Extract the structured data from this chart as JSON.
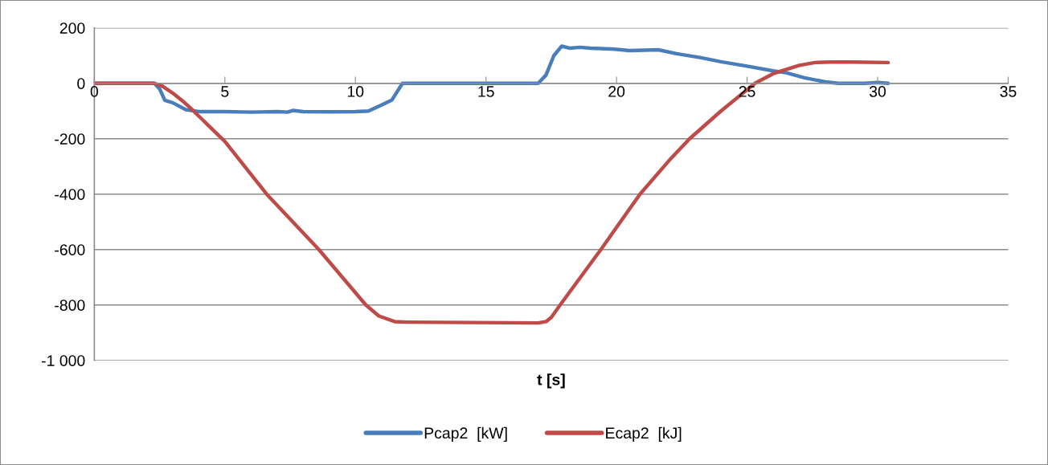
{
  "chart_data": {
    "type": "line",
    "xlabel": "t [s]",
    "xlim": [
      0,
      35
    ],
    "xticks": [
      0,
      5,
      10,
      15,
      20,
      25,
      30,
      35
    ],
    "ylim": [
      -1000,
      200
    ],
    "yticks": [
      {
        "value": -1000,
        "label": "-1 000"
      },
      -800,
      -600,
      -400,
      -200,
      0,
      200
    ],
    "grid": "y",
    "legend": "bottom",
    "marker": "none",
    "line_style": "solid",
    "series": [
      {
        "name": "Pcap2  [kW]",
        "color": "#4a7ebb",
        "x": [
          0,
          2.3,
          2.5,
          2.7,
          3.0,
          3.5,
          4.0,
          5.0,
          6.0,
          7.0,
          7.4,
          7.6,
          8.0,
          9.0,
          10.0,
          10.5,
          11.0,
          11.4,
          11.6,
          11.8,
          13.0,
          15.0,
          17.0,
          17.3,
          17.6,
          17.9,
          18.2,
          18.6,
          19.0,
          19.8,
          20.5,
          21.6,
          22.3,
          23.2,
          24.0,
          25.0,
          26.0,
          26.5,
          27.2,
          28.0,
          28.5,
          29.5,
          30.0,
          30.4
        ],
        "values": [
          0,
          0,
          -20,
          -61,
          -70,
          -95,
          -102,
          -102,
          -104,
          -102,
          -104,
          -98,
          -102,
          -103,
          -102,
          -100,
          -78,
          -60,
          -30,
          0,
          0,
          0,
          0,
          30,
          100,
          134,
          127,
          130,
          127,
          124,
          118,
          121,
          107,
          93,
          78,
          62,
          45,
          38,
          20,
          5,
          0,
          0,
          3,
          0
        ]
      },
      {
        "name": "Ecap2  [kJ]",
        "color": "#be4b48",
        "x": [
          0,
          2.3,
          2.6,
          3.0,
          3.4,
          3.8,
          5.0,
          6.6,
          8.6,
          10.4,
          10.9,
          11.5,
          12.0,
          17.0,
          17.3,
          17.5,
          17.84,
          19.4,
          20.9,
          22.0,
          22.8,
          24.0,
          25.3,
          26.0,
          27.0,
          27.6,
          28.2,
          29.0,
          30.4
        ],
        "values": [
          0,
          0,
          -10,
          -35,
          -65,
          -100,
          -210,
          -400,
          -600,
          -800,
          -840,
          -860,
          -862,
          -865,
          -860,
          -845,
          -800,
          -600,
          -400,
          -280,
          -200,
          -100,
          0,
          35,
          65,
          75,
          77,
          77,
          75
        ]
      }
    ]
  }
}
